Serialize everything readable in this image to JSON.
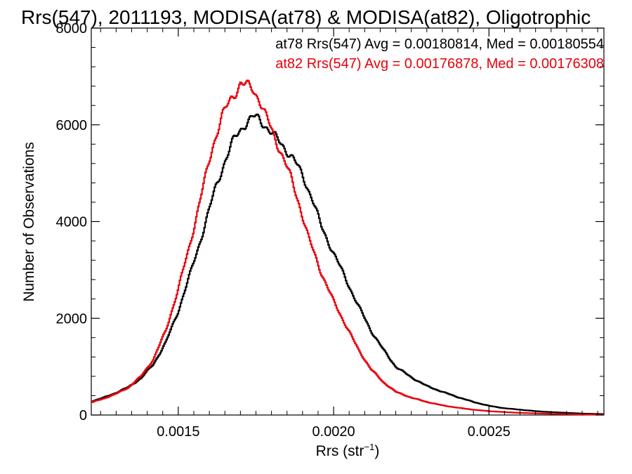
{
  "chart_data": {
    "type": "histogram",
    "title": "Rrs(547), 2011193, MODISA(at78) & MODISA(at82), Oligotrophic",
    "xlabel_base": "Rrs (str",
    "xlabel_sup": "−1",
    "xlabel_close": ")",
    "ylabel": "Number of Observations",
    "xlim": [
      0.00122,
      0.00287
    ],
    "ylim": [
      0,
      8000
    ],
    "x_ticks": [
      {
        "value": 0.0015,
        "label": "0.0015"
      },
      {
        "value": 0.002,
        "label": "0.0020"
      },
      {
        "value": 0.0025,
        "label": "0.0025"
      }
    ],
    "y_ticks": [
      {
        "value": 0,
        "label": "0"
      },
      {
        "value": 2000,
        "label": "2000"
      },
      {
        "value": 4000,
        "label": "4000"
      },
      {
        "value": 6000,
        "label": "6000"
      },
      {
        "value": 8000,
        "label": "8000"
      }
    ],
    "series": [
      {
        "name": "at78",
        "color": "#000000",
        "legend": "at78 Rrs(547) Avg = 0.00180814, Med = 0.00180554",
        "x": [
          0.00122,
          0.00126,
          0.0013,
          0.00134,
          0.00138,
          0.00142,
          0.00146,
          0.0015,
          0.00154,
          0.00158,
          0.00162,
          0.00165,
          0.00168,
          0.00171,
          0.00174,
          0.00176,
          0.00178,
          0.00181,
          0.00184,
          0.00187,
          0.0019,
          0.00193,
          0.00196,
          0.002,
          0.00204,
          0.00208,
          0.00212,
          0.00216,
          0.0022,
          0.00225,
          0.0023,
          0.00235,
          0.0024,
          0.00245,
          0.0025,
          0.00255,
          0.0026,
          0.00265,
          0.0027,
          0.00275,
          0.0028,
          0.00287
        ],
        "y": [
          280,
          360,
          460,
          580,
          760,
          1050,
          1500,
          2150,
          2950,
          3800,
          4700,
          5250,
          5700,
          6000,
          6150,
          6120,
          6000,
          5750,
          5550,
          5300,
          4950,
          4500,
          3900,
          3350,
          2800,
          2250,
          1750,
          1350,
          1000,
          780,
          600,
          480,
          370,
          270,
          190,
          140,
          110,
          80,
          60,
          45,
          30,
          20
        ]
      },
      {
        "name": "at82",
        "color": "#e8000b",
        "legend": "at82 Rrs(547) Avg = 0.00176878, Med = 0.00176308",
        "x": [
          0.00122,
          0.00126,
          0.0013,
          0.00134,
          0.00138,
          0.00142,
          0.00146,
          0.0015,
          0.00154,
          0.00158,
          0.00161,
          0.00164,
          0.00167,
          0.0017,
          0.00172,
          0.00174,
          0.00176,
          0.00178,
          0.0018,
          0.00183,
          0.00186,
          0.00189,
          0.00192,
          0.00196,
          0.002,
          0.00204,
          0.00208,
          0.00212,
          0.00216,
          0.0022,
          0.00225,
          0.0023,
          0.00235,
          0.0024,
          0.00245,
          0.0025,
          0.00255,
          0.0026,
          0.00265,
          0.0027,
          0.00275,
          0.0028,
          0.00287
        ],
        "y": [
          260,
          340,
          440,
          570,
          800,
          1150,
          1750,
          2600,
          3600,
          4700,
          5550,
          6150,
          6550,
          6850,
          6800,
          6750,
          6550,
          6200,
          5900,
          5450,
          4950,
          4350,
          3650,
          2950,
          2350,
          1850,
          1350,
          950,
          680,
          480,
          360,
          270,
          200,
          150,
          110,
          80,
          60,
          45,
          35,
          25,
          18,
          12,
          8
        ]
      }
    ],
    "grid": false,
    "legend_position": "top-right"
  }
}
